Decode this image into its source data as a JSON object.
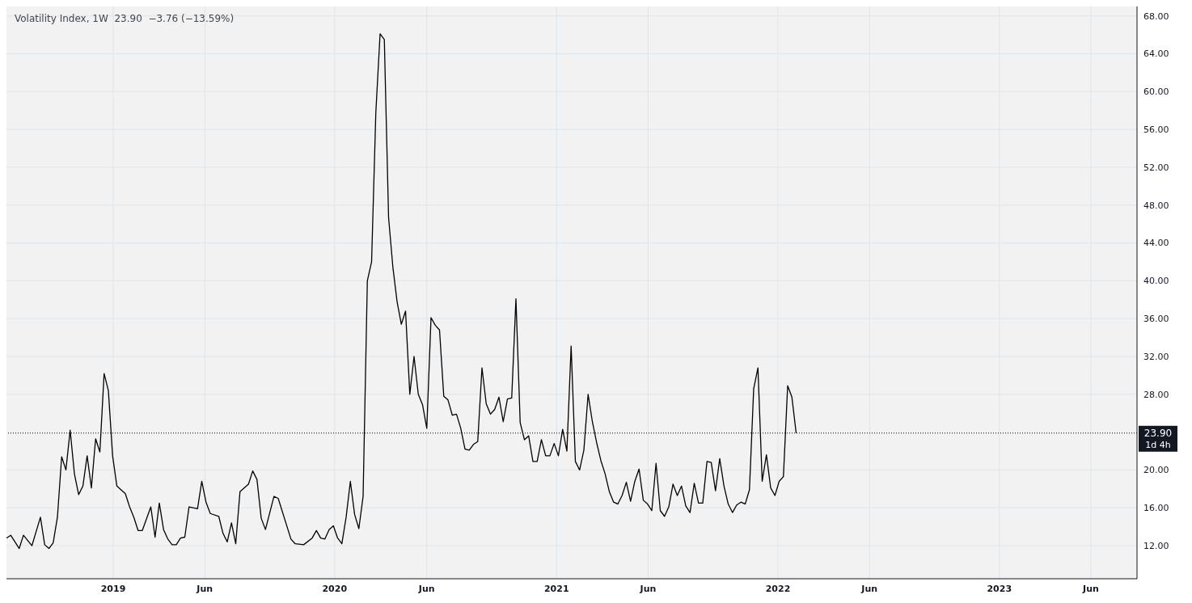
{
  "chart_data": {
    "type": "line",
    "title": "Volatility Index, 1W  23.90  −3.76 (−13.59%)",
    "xlim": [
      "2018-07-09",
      "2023-08-16"
    ],
    "xticks": [
      {
        "value": "2019-01-01",
        "label": "2019"
      },
      {
        "value": "2019-06-01",
        "label": "Jun"
      },
      {
        "value": "2020-01-01",
        "label": "2020"
      },
      {
        "value": "2020-06-01",
        "label": "Jun"
      },
      {
        "value": "2021-01-01",
        "label": "2021"
      },
      {
        "value": "2021-06-01",
        "label": "Jun"
      },
      {
        "value": "2022-01-01",
        "label": "2022"
      },
      {
        "value": "2022-06-01",
        "label": "Jun"
      },
      {
        "value": "2023-01-01",
        "label": "2023"
      },
      {
        "value": "2023-06-01",
        "label": "Jun"
      }
    ],
    "ylim": [
      8.5,
      69
    ],
    "yticks": [
      {
        "value": 12,
        "label": "12.00"
      },
      {
        "value": 16,
        "label": "16.00"
      },
      {
        "value": 20,
        "label": "20.00"
      },
      {
        "value": 28,
        "label": "28.00"
      },
      {
        "value": 32,
        "label": "32.00"
      },
      {
        "value": 36,
        "label": "36.00"
      },
      {
        "value": 40,
        "label": "40.00"
      },
      {
        "value": 44,
        "label": "44.00"
      },
      {
        "value": 48,
        "label": "48.00"
      },
      {
        "value": 52,
        "label": "52.00"
      },
      {
        "value": 56,
        "label": "56.00"
      },
      {
        "value": 60,
        "label": "60.00"
      },
      {
        "value": 64,
        "label": "64.00"
      },
      {
        "value": 68,
        "label": "68.00"
      }
    ],
    "grid": true,
    "marker": "none",
    "line_style": "solid",
    "ref_lines": [
      {
        "axis": "y",
        "value": 23.9,
        "label": "23.90",
        "line_style": "dotted",
        "color": "#000000"
      }
    ],
    "annotations": [
      "1d 4h"
    ],
    "series": [
      {
        "color": "#000000",
        "x": [
          "2018-07-09",
          "2018-07-16",
          "2018-07-30",
          "2018-08-06",
          "2018-08-20",
          "2018-09-03",
          "2018-09-10",
          "2018-09-17",
          "2018-09-24",
          "2018-10-01",
          "2018-10-08",
          "2018-10-15",
          "2018-10-22",
          "2018-10-29",
          "2018-11-05",
          "2018-11-12",
          "2018-11-19",
          "2018-11-26",
          "2018-12-03",
          "2018-12-10",
          "2018-12-17",
          "2018-12-24",
          "2018-12-31",
          "2019-01-07",
          "2019-01-21",
          "2019-01-28",
          "2019-02-04",
          "2019-02-11",
          "2019-02-18",
          "2019-03-04",
          "2019-03-11",
          "2019-03-18",
          "2019-03-25",
          "2019-04-01",
          "2019-04-08",
          "2019-04-15",
          "2019-04-22",
          "2019-04-29",
          "2019-05-06",
          "2019-05-20",
          "2019-05-27",
          "2019-06-03",
          "2019-06-10",
          "2019-06-24",
          "2019-07-01",
          "2019-07-08",
          "2019-07-15",
          "2019-07-22",
          "2019-07-29",
          "2019-08-12",
          "2019-08-19",
          "2019-08-26",
          "2019-09-02",
          "2019-09-09",
          "2019-09-23",
          "2019-09-30",
          "2019-10-21",
          "2019-10-28",
          "2019-11-11",
          "2019-11-25",
          "2019-12-02",
          "2019-12-09",
          "2019-12-16",
          "2019-12-23",
          "2019-12-30",
          "2020-01-06",
          "2020-01-13",
          "2020-01-20",
          "2020-01-27",
          "2020-02-03",
          "2020-02-10",
          "2020-02-17",
          "2020-02-24",
          "2020-03-02",
          "2020-03-09",
          "2020-03-16",
          "2020-03-23",
          "2020-03-30",
          "2020-04-06",
          "2020-04-13",
          "2020-04-20",
          "2020-04-27",
          "2020-05-04",
          "2020-05-11",
          "2020-05-18",
          "2020-05-25",
          "2020-06-01",
          "2020-06-08",
          "2020-06-15",
          "2020-06-22",
          "2020-06-29",
          "2020-07-06",
          "2020-07-13",
          "2020-07-20",
          "2020-07-27",
          "2020-08-03",
          "2020-08-10",
          "2020-08-17",
          "2020-08-24",
          "2020-08-31",
          "2020-09-07",
          "2020-09-14",
          "2020-09-21",
          "2020-09-28",
          "2020-10-05",
          "2020-10-12",
          "2020-10-19",
          "2020-10-26",
          "2020-11-02",
          "2020-11-09",
          "2020-11-16",
          "2020-11-23",
          "2020-11-30",
          "2020-12-07",
          "2020-12-14",
          "2020-12-21",
          "2020-12-28",
          "2021-01-04",
          "2021-01-11",
          "2021-01-18",
          "2021-01-25",
          "2021-02-01",
          "2021-02-08",
          "2021-02-15",
          "2021-02-22",
          "2021-03-01",
          "2021-03-08",
          "2021-03-15",
          "2021-03-22",
          "2021-03-29",
          "2021-04-05",
          "2021-04-12",
          "2021-04-19",
          "2021-04-26",
          "2021-05-03",
          "2021-05-10",
          "2021-05-17",
          "2021-05-24",
          "2021-05-31",
          "2021-06-07",
          "2021-06-14",
          "2021-06-21",
          "2021-06-28",
          "2021-07-05",
          "2021-07-12",
          "2021-07-19",
          "2021-07-26",
          "2021-08-02",
          "2021-08-09",
          "2021-08-16",
          "2021-08-23",
          "2021-08-30",
          "2021-09-06",
          "2021-09-13",
          "2021-09-20",
          "2021-09-27",
          "2021-10-04",
          "2021-10-11",
          "2021-10-18",
          "2021-10-25",
          "2021-11-01",
          "2021-11-08",
          "2021-11-15",
          "2021-11-22",
          "2021-11-29",
          "2021-12-06",
          "2021-12-13",
          "2021-12-20",
          "2021-12-27",
          "2022-01-03",
          "2022-01-10",
          "2022-01-17",
          "2022-01-24",
          "2022-01-31"
        ],
        "values": [
          12.8,
          13.1,
          11.7,
          13.1,
          12.0,
          15.0,
          12.1,
          11.7,
          12.3,
          15.0,
          21.4,
          20.0,
          24.2,
          19.6,
          17.4,
          18.3,
          21.5,
          18.1,
          23.3,
          21.9,
          30.2,
          28.4,
          21.5,
          18.3,
          17.5,
          16.1,
          15.0,
          13.6,
          13.6,
          16.1,
          12.9,
          16.5,
          13.7,
          12.7,
          12.1,
          12.1,
          12.8,
          12.9,
          16.1,
          15.9,
          18.8,
          16.6,
          15.4,
          15.1,
          13.3,
          12.4,
          14.4,
          12.2,
          17.7,
          18.5,
          19.9,
          19.0,
          14.9,
          13.7,
          17.2,
          17.0,
          12.7,
          12.2,
          12.1,
          12.8,
          13.6,
          12.8,
          12.7,
          13.7,
          14.1,
          12.8,
          12.2,
          15.0,
          18.8,
          15.3,
          13.8,
          17.2,
          40.0,
          42.0,
          57.8,
          66.1,
          65.5,
          46.7,
          41.5,
          37.8,
          35.4,
          36.8,
          28.0,
          32.0,
          28.0,
          26.9,
          24.4,
          36.1,
          35.3,
          34.8,
          27.8,
          27.4,
          25.8,
          25.9,
          24.4,
          22.2,
          22.1,
          22.7,
          23.0,
          30.8,
          27.0,
          25.9,
          26.4,
          27.7,
          25.1,
          27.5,
          27.6,
          38.1,
          25.0,
          23.2,
          23.6,
          20.9,
          20.9,
          23.2,
          21.5,
          21.5,
          22.8,
          21.5,
          24.3,
          22.0,
          33.1,
          20.9,
          20.0,
          22.1,
          28.0,
          25.1,
          22.9,
          21.0,
          19.6,
          17.7,
          16.6,
          16.4,
          17.3,
          18.7,
          16.7,
          18.8,
          20.1,
          16.8,
          16.4,
          15.7,
          20.7,
          15.7,
          15.1,
          16.1,
          18.5,
          17.3,
          18.3,
          16.2,
          15.5,
          18.6,
          16.5,
          16.5,
          20.9,
          20.8,
          17.8,
          21.2,
          18.3,
          16.4,
          15.5,
          16.3,
          16.6,
          16.4,
          17.9,
          28.6,
          30.8,
          18.8,
          21.6,
          18.1,
          17.3,
          18.8,
          19.3,
          28.9,
          27.7,
          23.9
        ]
      }
    ]
  }
}
